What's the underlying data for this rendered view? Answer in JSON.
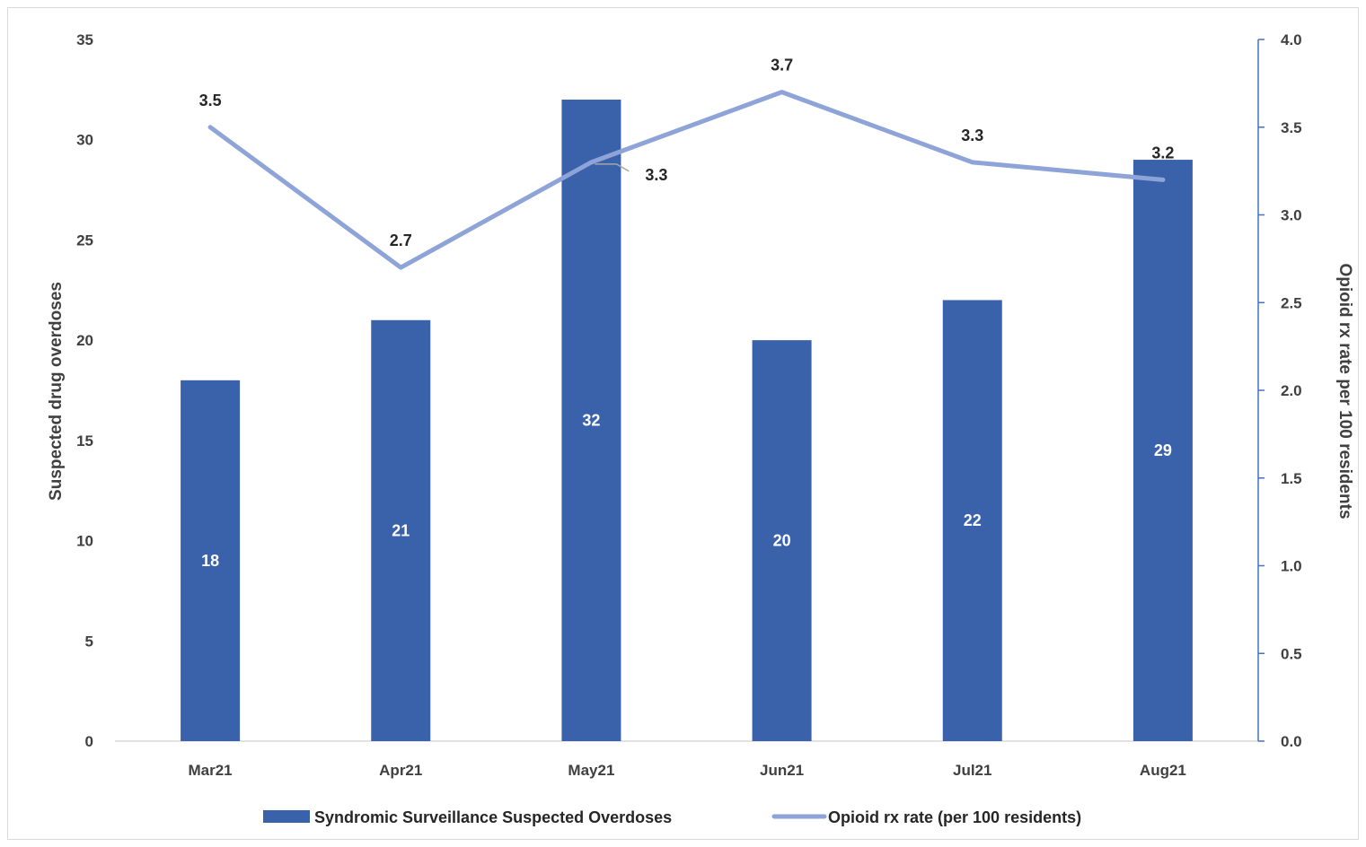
{
  "chart_data": {
    "type": "bar",
    "categories": [
      "Mar21",
      "Apr21",
      "May21",
      "Jun21",
      "Jul21",
      "Aug21"
    ],
    "series": [
      {
        "name": "Syndromic Surveillance Suspected Overdoses",
        "type": "bar",
        "axis": "left",
        "values": [
          18,
          21,
          32,
          20,
          22,
          29
        ],
        "color": "#3a62ab"
      },
      {
        "name": "Opioid rx rate (per 100 residents)",
        "type": "line",
        "axis": "right",
        "values": [
          3.5,
          2.7,
          3.3,
          3.7,
          3.3,
          3.2
        ],
        "color": "#8ea3d8"
      }
    ],
    "bar_labels": [
      "18",
      "21",
      "32",
      "20",
      "22",
      "29"
    ],
    "line_labels": [
      "3.5",
      "2.7",
      "3.3",
      "3.7",
      "3.3",
      "3.2"
    ],
    "ylabel": "Suspected drug overdoses",
    "y2label": "Opioid rx rate per 100 residents",
    "ylim": [
      0,
      35
    ],
    "y2lim": [
      0,
      4.0
    ],
    "yticks": [
      "0",
      "5",
      "10",
      "15",
      "20",
      "25",
      "30",
      "35"
    ],
    "y2ticks": [
      "0.0",
      "0.5",
      "1.0",
      "1.5",
      "2.0",
      "2.5",
      "3.0",
      "3.5",
      "4.0"
    ],
    "legend_position": "bottom",
    "grid": false
  }
}
